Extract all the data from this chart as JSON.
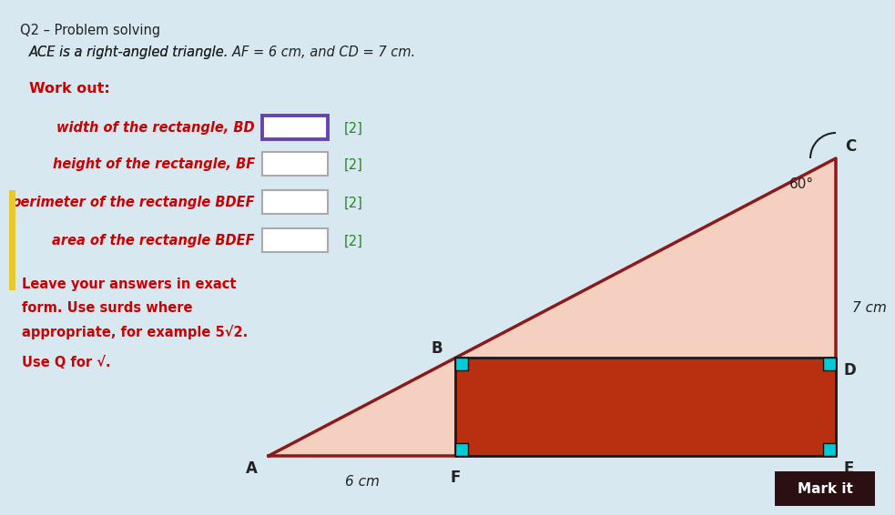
{
  "title_line1": "Q2 – Problem solving",
  "title_line2a": "ACE is a right-angled triangle. ",
  "title_line2b": "AF",
  "title_line2c": " = 6 cm, and ",
  "title_line2d": "CD",
  "title_line2e": " = 7 cm.",
  "work_out_label": "Work out:",
  "questions": [
    {
      "label": "width of the rectangle, ",
      "italic": "BD",
      "marks": "[2]",
      "box_highlighted": true
    },
    {
      "label": "height of the rectangle, ",
      "italic": "BF",
      "marks": "[2]",
      "box_highlighted": false
    },
    {
      "label": "perimeter of the rectangle ",
      "italic": "BDEF",
      "marks": "[2]",
      "box_highlighted": false
    },
    {
      "label": "area of the rectangle ",
      "italic": "BDEF",
      "marks": "[2]",
      "box_highlighted": false
    }
  ],
  "note_line1": "Leave your answers in exact",
  "note_line2": "form. Use surds where",
  "note_line3": "appropriate, for example 5√2.",
  "note_line4": "Use Q for √.",
  "mark_it_label": "Mark it",
  "background_color": "#d8e8f0",
  "triangle_fill": "#f5d0c0",
  "triangle_stroke": "#8b1a1a",
  "rect_fill": "#b83010",
  "rect_stroke": "#1a1a1a",
  "corner_color": "#00ccd8",
  "text_color_red": "#cc0000",
  "text_color_dark": "#222222",
  "highlight_box_color": "#6644aa",
  "angle_label": "60°",
  "cd_label": "7 cm",
  "af_label": "6 cm",
  "vertex_labels": {
    "A": "A",
    "B": "B",
    "C": "C",
    "D": "D",
    "E": "E",
    "F": "F"
  },
  "mark_it_bg": "#2a1010",
  "marks_color": "#228822",
  "yellow_tab": "#e8c830"
}
